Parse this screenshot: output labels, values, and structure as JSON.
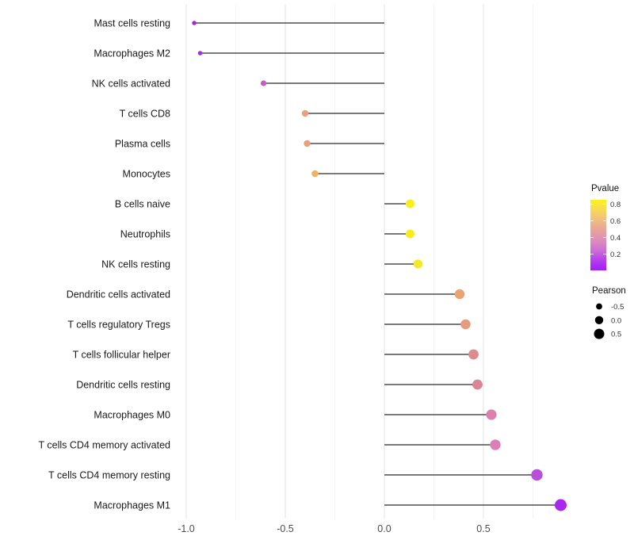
{
  "chart_data": {
    "type": "scatter",
    "variant": "lollipop",
    "orientation": "horizontal",
    "title": "",
    "xlabel": "",
    "ylabel": "",
    "grid": true,
    "legend_position": "right",
    "xlim": [
      -1.05,
      0.98
    ],
    "x_ticks": {
      "values": [
        -1.0,
        -0.5,
        0.0,
        0.5
      ],
      "labels": [
        "-1.0",
        "-0.5",
        "0.0",
        "0.5"
      ]
    },
    "x_minor": [
      -0.75,
      -0.25,
      0.25,
      0.75
    ],
    "categories": [
      "Mast cells resting",
      "Macrophages M2",
      "NK cells activated",
      "T cells CD8",
      "Plasma cells",
      "Monocytes",
      "B cells naive",
      "Neutrophils",
      "NK cells resting",
      "Dendritic cells activated",
      "T cells regulatory  Tregs",
      "T cells follicular helper",
      "Dendritic cells resting",
      "Macrophages M0",
      "T cells CD4 memory activated",
      "T cells CD4 memory resting",
      "Macrophages M1"
    ],
    "points": [
      {
        "label": "Mast cells resting",
        "pearson": -0.96,
        "color": "#A124E6"
      },
      {
        "label": "Macrophages M2",
        "pearson": -0.93,
        "color": "#A62BE2"
      },
      {
        "label": "NK cells activated",
        "pearson": -0.61,
        "color": "#C75BC8"
      },
      {
        "label": "T cells CD8",
        "pearson": -0.4,
        "color": "#E8A07E"
      },
      {
        "label": "Plasma cells",
        "pearson": -0.39,
        "color": "#E8A17C"
      },
      {
        "label": "Monocytes",
        "pearson": -0.35,
        "color": "#EFB165"
      },
      {
        "label": "B cells naive",
        "pearson": 0.13,
        "color": "#F6EE20"
      },
      {
        "label": "Neutrophils",
        "pearson": 0.13,
        "color": "#F5ED22"
      },
      {
        "label": "NK cells resting",
        "pearson": 0.17,
        "color": "#F3E928"
      },
      {
        "label": "Dendritic cells activated",
        "pearson": 0.38,
        "color": "#E9A471"
      },
      {
        "label": "T cells regulatory  Tregs",
        "pearson": 0.41,
        "color": "#E59B80"
      },
      {
        "label": "T cells follicular helper",
        "pearson": 0.45,
        "color": "#DD8B8E"
      },
      {
        "label": "Dendritic cells resting",
        "pearson": 0.47,
        "color": "#DB8495"
      },
      {
        "label": "Macrophages M0",
        "pearson": 0.54,
        "color": "#DC80B0"
      },
      {
        "label": "T cells CD4 memory activated",
        "pearson": 0.56,
        "color": "#DC7FB8"
      },
      {
        "label": "T cells CD4 memory resting",
        "pearson": 0.77,
        "color": "#B94FD8"
      },
      {
        "label": "Macrophages M1",
        "pearson": 0.89,
        "color": "#A928EA"
      }
    ],
    "legend": {
      "pvalue": {
        "title": "Pvalue",
        "ticks": {
          "values": [
            0.8,
            0.6,
            0.4,
            0.2
          ],
          "labels": [
            "0.8",
            "0.6",
            "0.4",
            "0.2"
          ]
        },
        "gradient_top_to_bottom": [
          {
            "offset": 0,
            "color": "#FCF21B"
          },
          {
            "offset": 10,
            "color": "#F8E046"
          },
          {
            "offset": 22,
            "color": "#F3CB6E"
          },
          {
            "offset": 35,
            "color": "#ECB18B"
          },
          {
            "offset": 48,
            "color": "#E49CA6"
          },
          {
            "offset": 60,
            "color": "#DB89BE"
          },
          {
            "offset": 72,
            "color": "#CC6DD6"
          },
          {
            "offset": 84,
            "color": "#B844EA"
          },
          {
            "offset": 93,
            "color": "#AA2BF1"
          },
          {
            "offset": 100,
            "color": "#A21FF4"
          }
        ]
      },
      "pearson": {
        "title": "Pearson",
        "items": {
          "values": [
            -0.5,
            0.0,
            0.5
          ],
          "labels": [
            "-0.5",
            "0.0",
            "0.5"
          ],
          "dot_color": "#000000"
        }
      }
    },
    "style": {
      "background": "#FFFFFF",
      "stem_color": "#2B2B2B",
      "grid_major": "#E3E3E3",
      "grid_minor": "#F1F1F1"
    }
  }
}
